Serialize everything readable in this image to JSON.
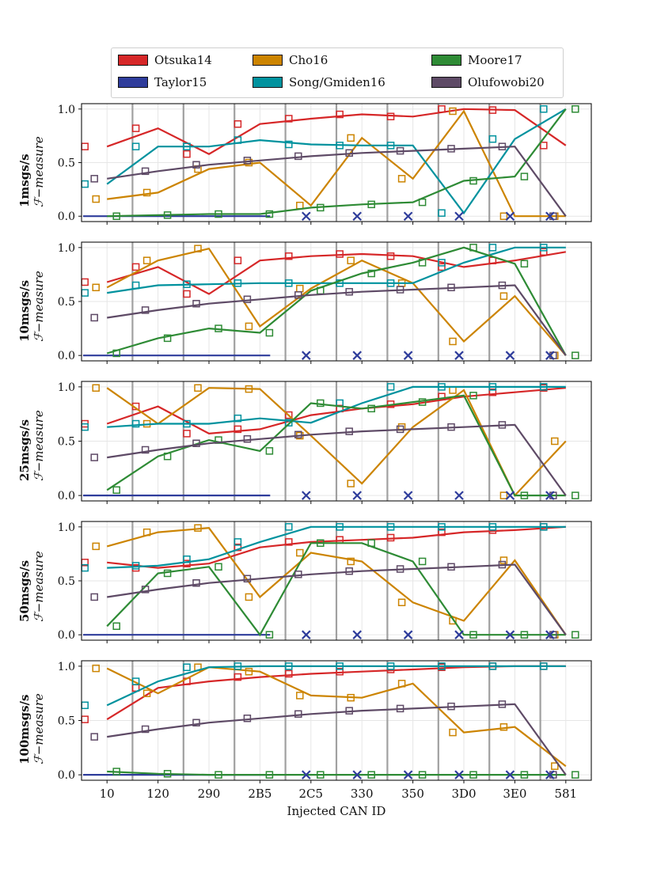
{
  "legend": [
    {
      "name": "Otsuka14",
      "color": "#d62728"
    },
    {
      "name": "Taylor15",
      "color": "#2e3c9b"
    },
    {
      "name": "Cho16",
      "color": "#cc8400"
    },
    {
      "name": "Song/Gmiden16",
      "color": "#00929e"
    },
    {
      "name": "Moore17",
      "color": "#2e8b35"
    },
    {
      "name": "Olufowobi20",
      "color": "#5e4a66"
    }
  ],
  "axis": {
    "xlabel": "Injected CAN ID",
    "ylabel_suffix": "ℱ−measure",
    "ytick_labels": [
      "0.0",
      "0.5",
      "1.0"
    ]
  },
  "chart_data": {
    "type": "line",
    "categories": [
      "10",
      "120",
      "290",
      "2B5",
      "2C5",
      "330",
      "350",
      "3D0",
      "3E0",
      "581"
    ],
    "ylim": [
      -0.05,
      1.05
    ],
    "yticks": [
      0.0,
      0.5,
      1.0
    ],
    "panels": [
      {
        "label": "1msgs/s",
        "series": [
          {
            "name": "Otsuka14",
            "color": "#d62728",
            "x": [
              0,
              1,
              2,
              3,
              4,
              5,
              6,
              7,
              8,
              9
            ],
            "y": [
              0.65,
              0.82,
              0.58,
              0.86,
              0.91,
              0.95,
              0.93,
              1.0,
              0.99,
              0.66
            ]
          },
          {
            "name": "Taylor15",
            "color": "#2e3c9b",
            "x": [
              -0.5,
              3.2
            ],
            "y": [
              0.0,
              0.0
            ]
          },
          {
            "name": "Cho16",
            "color": "#cc8400",
            "x": [
              0,
              1,
              2,
              3,
              4,
              5,
              6,
              7,
              8,
              9
            ],
            "y": [
              0.16,
              0.22,
              0.44,
              0.5,
              0.1,
              0.73,
              0.35,
              0.98,
              0.0,
              0.0
            ]
          },
          {
            "name": "Song/Gmiden16",
            "color": "#00929e",
            "x": [
              0,
              1,
              2,
              3,
              4,
              5,
              6,
              7,
              8,
              9
            ],
            "y": [
              0.3,
              0.65,
              0.65,
              0.71,
              0.67,
              0.66,
              0.66,
              0.03,
              0.72,
              1.0
            ]
          },
          {
            "name": "Moore17",
            "color": "#2e8b35",
            "x": [
              0,
              1,
              2,
              3,
              4,
              5,
              6,
              7,
              8,
              9
            ],
            "y": [
              0.0,
              0.01,
              0.02,
              0.02,
              0.08,
              0.11,
              0.13,
              0.33,
              0.37,
              1.0
            ]
          },
          {
            "name": "Olufowobi20",
            "color": "#5e4a66",
            "x": [
              0,
              1,
              2,
              3,
              4,
              5,
              6,
              7,
              8,
              9
            ],
            "y": [
              0.35,
              0.42,
              0.48,
              0.52,
              0.56,
              0.59,
              0.61,
              0.63,
              0.65,
              0.0
            ]
          }
        ],
        "missing_x": [
          4,
          5,
          6,
          7,
          8,
          9
        ]
      },
      {
        "label": "10msgs/s",
        "series": [
          {
            "name": "Otsuka14",
            "color": "#d62728",
            "x": [
              0,
              1,
              2,
              3,
              4,
              5,
              6,
              7,
              8,
              9
            ],
            "y": [
              0.68,
              0.82,
              0.57,
              0.88,
              0.92,
              0.94,
              0.92,
              0.82,
              0.88,
              0.96
            ]
          },
          {
            "name": "Taylor15",
            "color": "#2e3c9b",
            "x": [
              -0.5,
              3.2
            ],
            "y": [
              0.0,
              0.0
            ]
          },
          {
            "name": "Cho16",
            "color": "#cc8400",
            "x": [
              0,
              1,
              2,
              3,
              4,
              5,
              6,
              7,
              8,
              9
            ],
            "y": [
              0.63,
              0.88,
              0.99,
              0.27,
              0.62,
              0.88,
              0.67,
              0.13,
              0.55,
              0.0
            ]
          },
          {
            "name": "Song/Gmiden16",
            "color": "#00929e",
            "x": [
              0,
              1,
              2,
              3,
              4,
              5,
              6,
              7,
              8,
              9
            ],
            "y": [
              0.58,
              0.65,
              0.66,
              0.67,
              0.67,
              0.67,
              0.67,
              0.86,
              1.0,
              1.0
            ]
          },
          {
            "name": "Moore17",
            "color": "#2e8b35",
            "x": [
              0,
              1,
              2,
              3,
              4,
              5,
              6,
              7,
              8,
              9
            ],
            "y": [
              0.02,
              0.16,
              0.25,
              0.21,
              0.6,
              0.76,
              0.86,
              1.0,
              0.85,
              0.0
            ]
          },
          {
            "name": "Olufowobi20",
            "color": "#5e4a66",
            "x": [
              0,
              1,
              2,
              3,
              4,
              5,
              6,
              7,
              8,
              9
            ],
            "y": [
              0.35,
              0.42,
              0.48,
              0.52,
              0.56,
              0.59,
              0.61,
              0.63,
              0.65,
              0.0
            ]
          }
        ],
        "missing_x": [
          4,
          5,
          6,
          7,
          8,
          9
        ]
      },
      {
        "label": "25msgs/s",
        "series": [
          {
            "name": "Otsuka14",
            "color": "#d62728",
            "x": [
              0,
              1,
              2,
              3,
              4,
              5,
              6,
              7,
              8,
              9
            ],
            "y": [
              0.66,
              0.82,
              0.57,
              0.61,
              0.74,
              0.8,
              0.84,
              0.91,
              0.95,
              0.99
            ]
          },
          {
            "name": "Taylor15",
            "color": "#2e3c9b",
            "x": [
              -0.5,
              3.2
            ],
            "y": [
              0.0,
              0.0
            ]
          },
          {
            "name": "Cho16",
            "color": "#cc8400",
            "x": [
              0,
              1,
              2,
              3,
              4,
              5,
              6,
              7,
              8,
              9
            ],
            "y": [
              0.99,
              0.66,
              0.99,
              0.98,
              0.55,
              0.11,
              0.63,
              0.97,
              0.0,
              0.5
            ]
          },
          {
            "name": "Song/Gmiden16",
            "color": "#00929e",
            "x": [
              0,
              1,
              2,
              3,
              4,
              5,
              6,
              7,
              8,
              9
            ],
            "y": [
              0.63,
              0.66,
              0.66,
              0.71,
              0.67,
              0.85,
              1.0,
              1.0,
              1.0,
              1.0
            ]
          },
          {
            "name": "Moore17",
            "color": "#2e8b35",
            "x": [
              0,
              1,
              2,
              3,
              4,
              5,
              6,
              7,
              8,
              9
            ],
            "y": [
              0.05,
              0.36,
              0.51,
              0.41,
              0.85,
              0.8,
              0.86,
              0.92,
              0.0,
              0.0
            ]
          },
          {
            "name": "Olufowobi20",
            "color": "#5e4a66",
            "x": [
              0,
              1,
              2,
              3,
              4,
              5,
              6,
              7,
              8,
              9
            ],
            "y": [
              0.35,
              0.42,
              0.48,
              0.52,
              0.56,
              0.59,
              0.61,
              0.63,
              0.65,
              0.0
            ]
          }
        ],
        "missing_x": [
          4,
          5,
          6,
          7,
          8,
          9
        ]
      },
      {
        "label": "50msgs/s",
        "series": [
          {
            "name": "Otsuka14",
            "color": "#d62728",
            "x": [
              0,
              1,
              2,
              3,
              4,
              5,
              6,
              7,
              8,
              9
            ],
            "y": [
              0.67,
              0.62,
              0.66,
              0.81,
              0.86,
              0.88,
              0.9,
              0.95,
              0.97,
              1.0
            ]
          },
          {
            "name": "Taylor15",
            "color": "#2e3c9b",
            "x": [
              -0.5,
              3.2
            ],
            "y": [
              0.0,
              0.0
            ]
          },
          {
            "name": "Cho16",
            "color": "#cc8400",
            "x": [
              0,
              1,
              2,
              3,
              4,
              5,
              6,
              7,
              8,
              9
            ],
            "y": [
              0.82,
              0.95,
              0.99,
              0.35,
              0.76,
              0.68,
              0.3,
              0.13,
              0.69,
              0.0
            ]
          },
          {
            "name": "Song/Gmiden16",
            "color": "#00929e",
            "x": [
              0,
              1,
              2,
              3,
              4,
              5,
              6,
              7,
              8,
              9
            ],
            "y": [
              0.62,
              0.64,
              0.7,
              0.86,
              1.0,
              1.0,
              1.0,
              1.0,
              1.0,
              1.0
            ]
          },
          {
            "name": "Moore17",
            "color": "#2e8b35",
            "x": [
              0,
              1,
              2,
              3,
              4,
              5,
              6,
              7,
              8,
              9
            ],
            "y": [
              0.08,
              0.57,
              0.63,
              0.0,
              0.85,
              0.85,
              0.68,
              0.0,
              0.0,
              0.0
            ]
          },
          {
            "name": "Olufowobi20",
            "color": "#5e4a66",
            "x": [
              0,
              1,
              2,
              3,
              4,
              5,
              6,
              7,
              8,
              9
            ],
            "y": [
              0.35,
              0.42,
              0.48,
              0.52,
              0.56,
              0.59,
              0.61,
              0.63,
              0.65,
              0.0
            ]
          }
        ],
        "missing_x": [
          4,
          5,
          6,
          7,
          8,
          9
        ]
      },
      {
        "label": "100msgs/s",
        "series": [
          {
            "name": "Otsuka14",
            "color": "#d62728",
            "x": [
              0,
              1,
              2,
              3,
              4,
              5,
              6,
              7,
              8,
              9
            ],
            "y": [
              0.51,
              0.8,
              0.86,
              0.9,
              0.93,
              0.95,
              0.97,
              0.99,
              1.0,
              1.0
            ]
          },
          {
            "name": "Taylor15",
            "color": "#2e3c9b",
            "x": [
              -0.5,
              3.2
            ],
            "y": [
              0.0,
              0.0
            ]
          },
          {
            "name": "Cho16",
            "color": "#cc8400",
            "x": [
              0,
              1,
              2,
              3,
              4,
              5,
              6,
              7,
              8,
              9
            ],
            "y": [
              0.98,
              0.75,
              0.99,
              0.95,
              0.73,
              0.71,
              0.84,
              0.39,
              0.44,
              0.08
            ]
          },
          {
            "name": "Song/Gmiden16",
            "color": "#00929e",
            "x": [
              0,
              1,
              2,
              3,
              4,
              5,
              6,
              7,
              8,
              9
            ],
            "y": [
              0.64,
              0.86,
              0.99,
              1.0,
              1.0,
              1.0,
              1.0,
              1.0,
              1.0,
              1.0
            ]
          },
          {
            "name": "Moore17",
            "color": "#2e8b35",
            "x": [
              0,
              1,
              2,
              3,
              4,
              5,
              6,
              7,
              8,
              9
            ],
            "y": [
              0.03,
              0.01,
              0.0,
              0.0,
              0.0,
              0.0,
              0.0,
              0.0,
              0.0,
              0.0
            ]
          },
          {
            "name": "Olufowobi20",
            "color": "#5e4a66",
            "x": [
              0,
              1,
              2,
              3,
              4,
              5,
              6,
              7,
              8,
              9
            ],
            "y": [
              0.35,
              0.42,
              0.48,
              0.52,
              0.56,
              0.59,
              0.61,
              0.63,
              0.65,
              0.0
            ]
          }
        ],
        "missing_x": [
          4,
          5,
          6,
          7,
          8,
          9
        ]
      }
    ]
  }
}
